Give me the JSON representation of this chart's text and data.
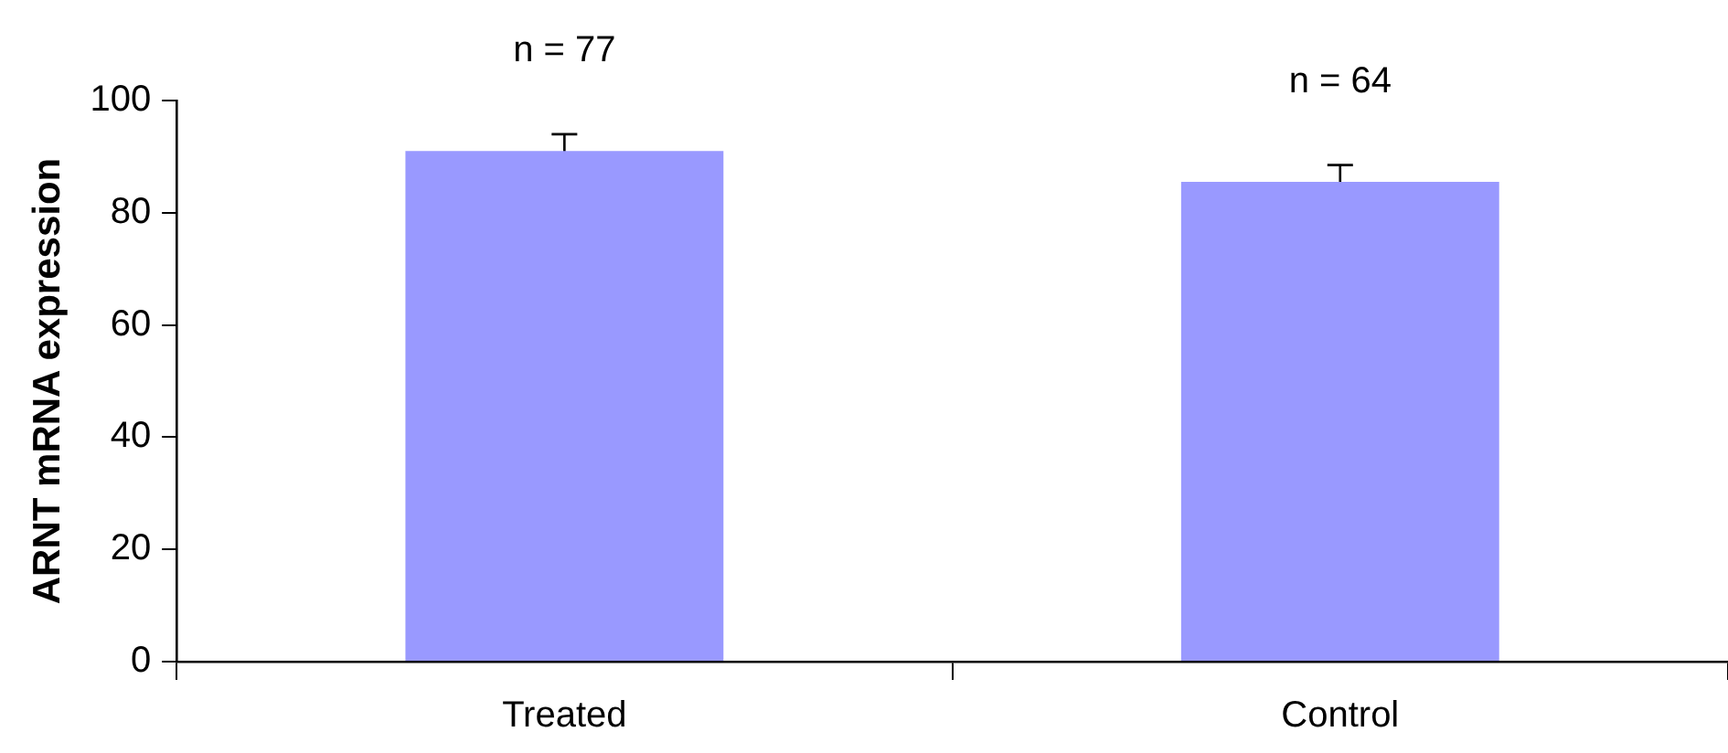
{
  "chart_data": {
    "type": "bar",
    "ylabel": "ARNT mRNA expression",
    "categories": [
      "Treated",
      "Control"
    ],
    "values": [
      91,
      85.5
    ],
    "errors": [
      3,
      3
    ],
    "color": "#9999ff",
    "ylim": [
      0,
      100
    ],
    "yticks": [
      0,
      20,
      40,
      60,
      80,
      100
    ],
    "grid": false,
    "legend": false,
    "annotations": [
      "n = 77",
      "n = 64"
    ]
  }
}
